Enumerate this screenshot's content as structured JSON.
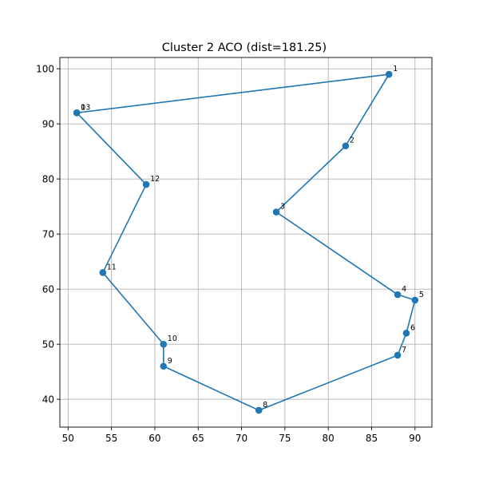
{
  "chart_data": {
    "type": "line",
    "title": "Cluster 2 ACO (dist=181.25)",
    "xlabel": "",
    "ylabel": "",
    "xlim": [
      49.05,
      91.95
    ],
    "ylim": [
      34.95,
      102.05
    ],
    "xticks": [
      50,
      55,
      60,
      65,
      70,
      75,
      80,
      85,
      90
    ],
    "yticks": [
      40,
      50,
      60,
      70,
      80,
      90,
      100
    ],
    "grid": true,
    "color": "#1f77b4",
    "marker": "circle",
    "series": [
      {
        "name": "",
        "points": [
          {
            "x": 51,
            "y": 92,
            "label": "0"
          },
          {
            "x": 87,
            "y": 99,
            "label": "1"
          },
          {
            "x": 82,
            "y": 86,
            "label": "2"
          },
          {
            "x": 74,
            "y": 74,
            "label": "3"
          },
          {
            "x": 88,
            "y": 59,
            "label": "4"
          },
          {
            "x": 90,
            "y": 58,
            "label": "5"
          },
          {
            "x": 89,
            "y": 52,
            "label": "6"
          },
          {
            "x": 88,
            "y": 48,
            "label": "7"
          },
          {
            "x": 72,
            "y": 38,
            "label": "8"
          },
          {
            "x": 61,
            "y": 46,
            "label": "9"
          },
          {
            "x": 61,
            "y": 50,
            "label": "10"
          },
          {
            "x": 54,
            "y": 63,
            "label": "11"
          },
          {
            "x": 59,
            "y": 79,
            "label": "12"
          },
          {
            "x": 51,
            "y": 92,
            "label": "13"
          }
        ]
      }
    ]
  }
}
